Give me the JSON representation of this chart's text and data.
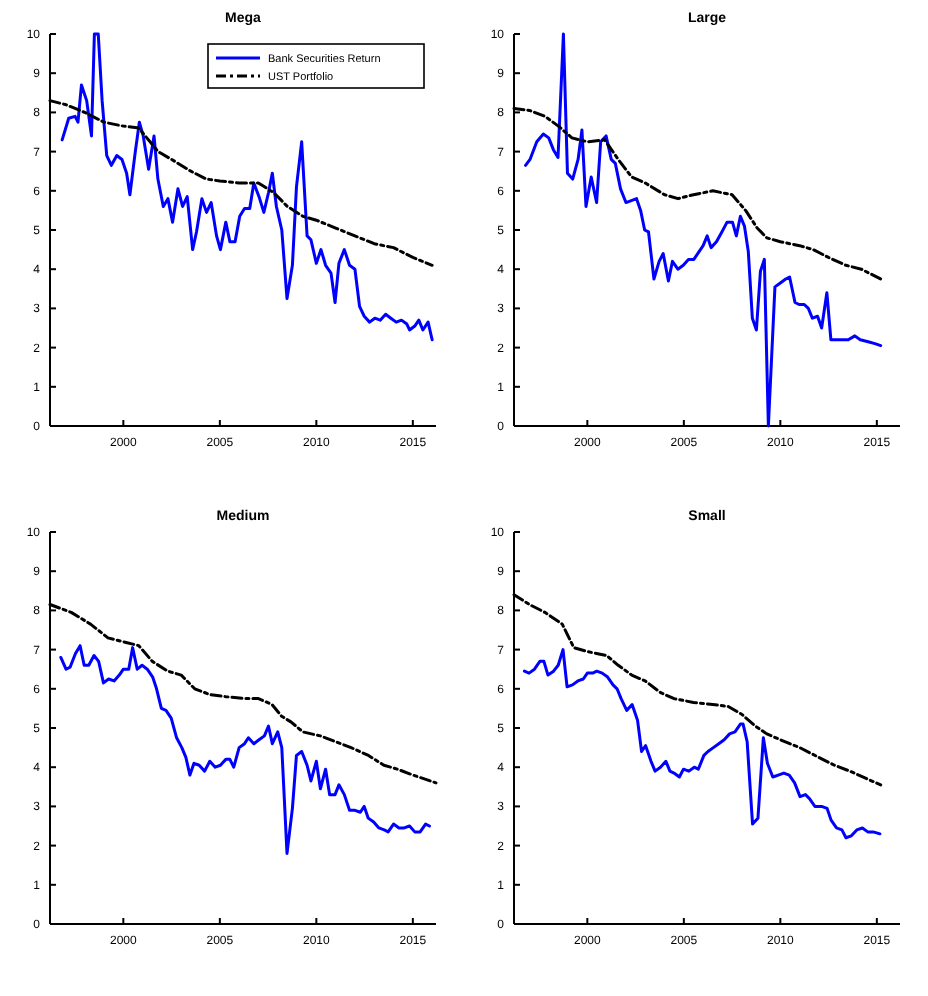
{
  "chart_data": [
    {
      "type": "line",
      "title": "Mega",
      "xlim": [
        1996.2,
        2016.2
      ],
      "xticks": [
        2000,
        2005,
        2010,
        2015
      ],
      "ylim": [
        0,
        10
      ],
      "yticks": [
        0,
        1,
        2,
        3,
        4,
        5,
        6,
        7,
        8,
        9,
        10
      ],
      "grid": false,
      "legend": "top right",
      "marker": "none",
      "series": [
        {
          "name": "Bank Securities Return",
          "color": "#0000ff",
          "line_style": "solid",
          "x": [
            1996.83,
            1997.17,
            1997.5,
            1997.65,
            1997.83,
            1998.1,
            1998.35,
            1998.5,
            1998.7,
            1998.9,
            1999.14,
            1999.38,
            1999.66,
            1999.93,
            2000.17,
            2000.34,
            2000.62,
            2000.83,
            2001.03,
            2001.31,
            2001.59,
            2001.79,
            2002.07,
            2002.31,
            2002.55,
            2002.83,
            2003.07,
            2003.31,
            2003.59,
            2003.79,
            2004.07,
            2004.31,
            2004.55,
            2004.83,
            2005.03,
            2005.31,
            2005.52,
            2005.79,
            2006.03,
            2006.28,
            2006.55,
            2006.76,
            2007.03,
            2007.28,
            2007.52,
            2007.72,
            2007.93,
            2008.21,
            2008.48,
            2008.76,
            2008.97,
            2009.24,
            2009.52,
            2009.72,
            2010.0,
            2010.24,
            2010.48,
            2010.76,
            2010.97,
            2011.17,
            2011.45,
            2011.72,
            2012.0,
            2012.24,
            2012.48,
            2012.76,
            2013.03,
            2013.31,
            2013.59,
            2013.86,
            2014.14,
            2014.41,
            2014.69,
            2014.83,
            2015.1,
            2015.31,
            2015.52,
            2015.79,
            2016.0
          ],
          "values": [
            7.3,
            7.85,
            7.9,
            7.75,
            8.7,
            8.3,
            7.4,
            10,
            10,
            8.3,
            6.9,
            6.65,
            6.9,
            6.8,
            6.45,
            5.9,
            7.0,
            7.75,
            7.4,
            6.55,
            7.4,
            6.3,
            5.6,
            5.8,
            5.2,
            6.05,
            5.6,
            5.85,
            4.5,
            4.95,
            5.8,
            5.45,
            5.7,
            4.85,
            4.5,
            5.2,
            4.7,
            4.7,
            5.35,
            5.55,
            5.55,
            6.2,
            5.85,
            5.45,
            5.95,
            6.45,
            5.6,
            5.0,
            3.25,
            4.1,
            6.1,
            7.25,
            4.85,
            4.75,
            4.15,
            4.5,
            4.1,
            3.9,
            3.15,
            4.15,
            4.5,
            4.1,
            4.0,
            3.05,
            2.8,
            2.65,
            2.75,
            2.7,
            2.85,
            2.75,
            2.65,
            2.7,
            2.6,
            2.45,
            2.55,
            2.7,
            2.45,
            2.65,
            2.2
          ]
        },
        {
          "name": "UST Portfolio",
          "color": "#000000",
          "line_style": "dashed",
          "x": [
            1996.2,
            1997,
            1998,
            1999,
            2000,
            2000.8,
            2001.8,
            2002.5,
            2003.5,
            2004.3,
            2005,
            2006,
            2007,
            2007.8,
            2008.5,
            2009.3,
            2010,
            2011,
            2012,
            2013,
            2014,
            2015,
            2016
          ],
          "values": [
            8.3,
            8.2,
            8.0,
            7.75,
            7.65,
            7.6,
            7.0,
            6.8,
            6.5,
            6.3,
            6.25,
            6.2,
            6.2,
            5.95,
            5.6,
            5.35,
            5.25,
            5.05,
            4.85,
            4.65,
            4.55,
            4.3,
            4.1
          ]
        }
      ]
    },
    {
      "type": "line",
      "title": "Large",
      "xlim": [
        1996.2,
        2016.2
      ],
      "xticks": [
        2000,
        2005,
        2010,
        2015
      ],
      "ylim": [
        0,
        10
      ],
      "yticks": [
        0,
        1,
        2,
        3,
        4,
        5,
        6,
        7,
        8,
        9,
        10
      ],
      "grid": false,
      "legend": false,
      "marker": "none",
      "series": [
        {
          "color": "#0000ff",
          "line_style": "solid",
          "x": [
            1996.8,
            1997.03,
            1997.38,
            1997.72,
            1998.0,
            1998.24,
            1998.48,
            1998.76,
            1998.97,
            1999.24,
            1999.52,
            1999.72,
            1999.93,
            2000.2,
            2000.48,
            2000.69,
            2000.97,
            2001.24,
            2001.45,
            2001.72,
            2002.0,
            2002.28,
            2002.55,
            2002.76,
            2002.97,
            2003.17,
            2003.45,
            2003.72,
            2003.93,
            2004.2,
            2004.41,
            2004.69,
            2004.97,
            2005.24,
            2005.52,
            2005.79,
            2006.0,
            2006.21,
            2006.41,
            2006.69,
            2006.97,
            2007.24,
            2007.52,
            2007.72,
            2007.93,
            2008.14,
            2008.34,
            2008.55,
            2008.76,
            2008.97,
            2009.17,
            2009.38,
            2009.72,
            2010.0,
            2010.28,
            2010.48,
            2010.76,
            2010.97,
            2011.24,
            2011.45,
            2011.66,
            2011.93,
            2012.14,
            2012.41,
            2012.62,
            2012.9,
            2013.17,
            2013.52,
            2013.86,
            2014.14,
            2014.55,
            2014.9,
            2015.2
          ],
          "values": [
            6.65,
            6.8,
            7.25,
            7.45,
            7.35,
            7.05,
            6.85,
            10,
            6.45,
            6.3,
            6.8,
            7.55,
            5.6,
            6.35,
            5.7,
            7.25,
            7.4,
            6.8,
            6.7,
            6.05,
            5.7,
            5.75,
            5.8,
            5.5,
            5.0,
            4.95,
            3.75,
            4.2,
            4.4,
            3.7,
            4.2,
            4.0,
            4.1,
            4.25,
            4.25,
            4.45,
            4.6,
            4.85,
            4.55,
            4.7,
            4.95,
            5.2,
            5.2,
            4.85,
            5.35,
            5.1,
            4.45,
            2.75,
            2.45,
            3.95,
            4.25,
            0,
            3.55,
            3.65,
            3.75,
            3.8,
            3.15,
            3.1,
            3.1,
            3.0,
            2.75,
            2.8,
            2.5,
            3.4,
            2.2,
            2.2,
            2.2,
            2.2,
            2.3,
            2.2,
            2.15,
            2.1,
            2.05
          ]
        },
        {
          "color": "#000000",
          "line_style": "dashed",
          "x": [
            1996.2,
            1997,
            1997.8,
            1998.5,
            1999.2,
            2000,
            2000.9,
            2001.6,
            2002.3,
            2003,
            2004,
            2004.7,
            2005.5,
            2006.5,
            2007.5,
            2008.2,
            2008.8,
            2009.3,
            2010,
            2011,
            2011.7,
            2012.5,
            2013.4,
            2014.2,
            2015.2
          ],
          "values": [
            8.1,
            8.05,
            7.9,
            7.65,
            7.35,
            7.25,
            7.3,
            6.8,
            6.35,
            6.2,
            5.9,
            5.8,
            5.9,
            6.0,
            5.9,
            5.5,
            5.05,
            4.8,
            4.7,
            4.6,
            4.5,
            4.3,
            4.1,
            4.0,
            3.75
          ]
        }
      ]
    },
    {
      "type": "line",
      "title": "Medium",
      "xlim": [
        1996.2,
        2016.2
      ],
      "xticks": [
        2000,
        2005,
        2010,
        2015
      ],
      "ylim": [
        0,
        10
      ],
      "yticks": [
        0,
        1,
        2,
        3,
        4,
        5,
        6,
        7,
        8,
        9,
        10
      ],
      "grid": false,
      "legend": false,
      "marker": "none",
      "series": [
        {
          "color": "#0000ff",
          "line_style": "solid",
          "x": [
            1996.76,
            1997.03,
            1997.24,
            1997.52,
            1997.76,
            1997.97,
            1998.21,
            1998.48,
            1998.72,
            1998.97,
            1999.24,
            1999.52,
            1999.79,
            2000.0,
            2000.28,
            2000.48,
            2000.72,
            2000.97,
            2001.24,
            2001.52,
            2001.72,
            2001.97,
            2002.21,
            2002.48,
            2002.76,
            2003.03,
            2003.24,
            2003.45,
            2003.66,
            2003.93,
            2004.21,
            2004.48,
            2004.76,
            2005.03,
            2005.31,
            2005.52,
            2005.72,
            2006.0,
            2006.28,
            2006.48,
            2006.76,
            2007.03,
            2007.31,
            2007.52,
            2007.72,
            2008.0,
            2008.21,
            2008.48,
            2008.76,
            2008.97,
            2009.24,
            2009.52,
            2009.72,
            2010.0,
            2010.21,
            2010.48,
            2010.69,
            2010.97,
            2011.17,
            2011.45,
            2011.72,
            2012.0,
            2012.28,
            2012.48,
            2012.69,
            2012.97,
            2013.24,
            2013.52,
            2013.72,
            2014.0,
            2014.28,
            2014.55,
            2014.83,
            2015.1,
            2015.38,
            2015.66,
            2015.86
          ],
          "values": [
            6.8,
            6.5,
            6.55,
            6.9,
            7.1,
            6.6,
            6.6,
            6.85,
            6.7,
            6.15,
            6.25,
            6.2,
            6.35,
            6.5,
            6.5,
            7.05,
            6.5,
            6.6,
            6.5,
            6.3,
            6.0,
            5.5,
            5.45,
            5.25,
            4.75,
            4.5,
            4.25,
            3.8,
            4.1,
            4.05,
            3.9,
            4.15,
            4.0,
            4.05,
            4.2,
            4.2,
            4.0,
            4.5,
            4.6,
            4.75,
            4.6,
            4.7,
            4.8,
            5.05,
            4.6,
            4.9,
            4.5,
            1.8,
            2.95,
            4.3,
            4.4,
            4.05,
            3.65,
            4.15,
            3.45,
            3.95,
            3.3,
            3.3,
            3.55,
            3.3,
            2.9,
            2.9,
            2.85,
            3.0,
            2.7,
            2.6,
            2.45,
            2.4,
            2.35,
            2.55,
            2.45,
            2.45,
            2.5,
            2.35,
            2.35,
            2.55,
            2.5
          ]
        },
        {
          "color": "#000000",
          "line_style": "dashed",
          "x": [
            1996.2,
            1997.3,
            1998.3,
            1999.2,
            2000,
            2000.8,
            2001.5,
            2002.3,
            2003,
            2003.7,
            2004.5,
            2005.3,
            2006.3,
            2007,
            2007.7,
            2008.2,
            2008.7,
            2009.3,
            2010.2,
            2011,
            2011.8,
            2012.7,
            2013.5,
            2014.2,
            2015,
            2016.2
          ],
          "values": [
            8.15,
            7.95,
            7.65,
            7.3,
            7.2,
            7.1,
            6.7,
            6.45,
            6.35,
            6.0,
            5.85,
            5.8,
            5.75,
            5.75,
            5.6,
            5.3,
            5.15,
            4.9,
            4.8,
            4.65,
            4.5,
            4.3,
            4.05,
            3.95,
            3.8,
            3.6
          ]
        }
      ]
    },
    {
      "type": "line",
      "title": "Small",
      "xlim": [
        1996.2,
        2016.2
      ],
      "xticks": [
        2000,
        2005,
        2010,
        2015
      ],
      "ylim": [
        0,
        10
      ],
      "yticks": [
        0,
        1,
        2,
        3,
        4,
        5,
        6,
        7,
        8,
        9,
        10
      ],
      "grid": false,
      "legend": false,
      "marker": "none",
      "series": [
        {
          "color": "#0000ff",
          "line_style": "solid",
          "x": [
            1996.74,
            1996.98,
            1997.26,
            1997.54,
            1997.75,
            1997.96,
            1998.25,
            1998.49,
            1998.74,
            1998.95,
            1999.23,
            1999.51,
            1999.79,
            2000.0,
            2000.28,
            2000.49,
            2000.77,
            2001.05,
            2001.33,
            2001.54,
            2001.75,
            2002.04,
            2002.32,
            2002.6,
            2002.81,
            2003.02,
            2003.3,
            2003.51,
            2003.79,
            2004.07,
            2004.28,
            2004.49,
            2004.77,
            2004.98,
            2005.26,
            2005.54,
            2005.75,
            2006.04,
            2006.25,
            2006.53,
            2006.81,
            2007.09,
            2007.37,
            2007.65,
            2007.93,
            2008.07,
            2008.28,
            2008.56,
            2008.84,
            2009.12,
            2009.33,
            2009.61,
            2009.89,
            2010.18,
            2010.46,
            2010.74,
            2011.02,
            2011.3,
            2011.51,
            2011.79,
            2012.14,
            2012.42,
            2012.63,
            2012.91,
            2013.19,
            2013.4,
            2013.68,
            2013.96,
            2014.25,
            2014.53,
            2014.81,
            2015.16
          ],
          "values": [
            6.45,
            6.4,
            6.5,
            6.7,
            6.7,
            6.35,
            6.45,
            6.6,
            7.0,
            6.05,
            6.1,
            6.2,
            6.25,
            6.4,
            6.4,
            6.45,
            6.4,
            6.3,
            6.1,
            6.0,
            5.75,
            5.45,
            5.6,
            5.2,
            4.4,
            4.55,
            4.15,
            3.9,
            4.0,
            4.15,
            3.9,
            3.85,
            3.75,
            3.95,
            3.9,
            4.0,
            3.95,
            4.3,
            4.4,
            4.5,
            4.6,
            4.7,
            4.85,
            4.9,
            5.1,
            5.1,
            4.65,
            2.55,
            2.7,
            4.75,
            4.1,
            3.75,
            3.8,
            3.85,
            3.8,
            3.6,
            3.25,
            3.3,
            3.2,
            3.0,
            3.0,
            2.95,
            2.65,
            2.45,
            2.4,
            2.2,
            2.25,
            2.4,
            2.45,
            2.35,
            2.35,
            2.3
          ]
        },
        {
          "color": "#000000",
          "line_style": "dashed",
          "x": [
            1996.2,
            1997,
            1997.8,
            1998.7,
            1999.3,
            2000,
            2001,
            2001.6,
            2002.3,
            2003,
            2003.8,
            2004.5,
            2005.5,
            2006.5,
            2007.3,
            2008,
            2008.7,
            2009.3,
            2010,
            2011,
            2012,
            2012.8,
            2013.6,
            2014.5,
            2015.2
          ],
          "values": [
            8.4,
            8.15,
            7.95,
            7.65,
            7.05,
            6.95,
            6.85,
            6.6,
            6.35,
            6.2,
            5.9,
            5.75,
            5.65,
            5.6,
            5.55,
            5.35,
            5.05,
            4.85,
            4.7,
            4.5,
            4.25,
            4.05,
            3.9,
            3.7,
            3.55
          ]
        }
      ]
    }
  ]
}
